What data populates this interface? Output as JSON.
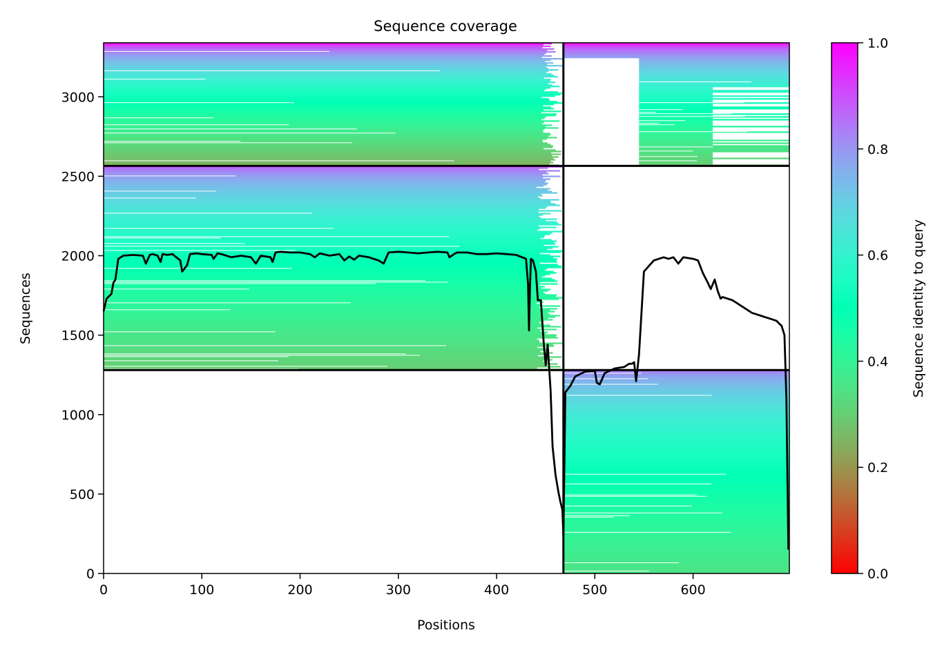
{
  "chart_data": {
    "type": "heatmap",
    "title": "Sequence coverage",
    "xlabel": "Positions",
    "ylabel": "Sequences",
    "xlim": [
      0,
      698
    ],
    "ylim": [
      0,
      3340
    ],
    "xticks": [
      0,
      100,
      200,
      300,
      400,
      500,
      600
    ],
    "yticks": [
      0,
      500,
      1000,
      1500,
      2000,
      2500,
      3000
    ],
    "colorbar": {
      "label": "Sequence identity to query",
      "colormap": "rainbow_r",
      "range": [
        0.0,
        1.0
      ],
      "ticks": [
        "0.0",
        "0.2",
        "0.4",
        "0.6",
        "0.8",
        "1.0"
      ]
    },
    "boundaries": {
      "x_split": 468,
      "y_splits": [
        1280,
        2565
      ]
    },
    "blocks": [
      {
        "x": [
          0,
          468
        ],
        "y": [
          2565,
          3340
        ],
        "identity_top": 1.0,
        "identity_bottom": 0.25,
        "ragged_end_x": 445
      },
      {
        "x": [
          468,
          698
        ],
        "y": [
          2565,
          3340
        ],
        "identity_top": 1.0,
        "identity_bottom": 0.3,
        "gap_x": [
          468,
          545
        ],
        "gap_y_below": 3250,
        "ragged_region_x": [
          620,
          698
        ]
      },
      {
        "x": [
          0,
          468
        ],
        "y": [
          1280,
          2565
        ],
        "identity_top": 0.9,
        "identity_bottom": 0.3,
        "ragged_end_x": 440
      },
      {
        "x": [
          468,
          698
        ],
        "y": [
          0,
          1280
        ],
        "identity_top": 0.85,
        "identity_bottom": 0.35
      }
    ],
    "series": [
      {
        "type": "line",
        "color": "#000000",
        "x": [
          0,
          3,
          8,
          10,
          12,
          15,
          20,
          30,
          40,
          43,
          47,
          50,
          55,
          58,
          60,
          65,
          70,
          78,
          80,
          85,
          88,
          95,
          100,
          110,
          112,
          116,
          120,
          130,
          140,
          150,
          155,
          160,
          170,
          172,
          175,
          180,
          190,
          200,
          210,
          215,
          220,
          230,
          240,
          245,
          250,
          255,
          260,
          270,
          280,
          285,
          290,
          300,
          310,
          320,
          330,
          340,
          350,
          352,
          358,
          360,
          370,
          380,
          390,
          400,
          410,
          420,
          430,
          432,
          433,
          434,
          435,
          437,
          440,
          442,
          445,
          448,
          450,
          452,
          455,
          457,
          460,
          463,
          465,
          467,
          468,
          470,
          475,
          480,
          490,
          500,
          502,
          505,
          510,
          520,
          530,
          535,
          538,
          540,
          542,
          545,
          550,
          560,
          570,
          575,
          580,
          585,
          590,
          600,
          605,
          610,
          615,
          618,
          620,
          622,
          625,
          628,
          630,
          640,
          650,
          660,
          665,
          670,
          675,
          680,
          685,
          688,
          690,
          693,
          695,
          697
        ],
        "y": [
          1650,
          1730,
          1760,
          1830,
          1850,
          1980,
          2000,
          2005,
          2000,
          1950,
          2005,
          2010,
          2000,
          1960,
          2010,
          2005,
          2010,
          1970,
          1900,
          1940,
          2010,
          2015,
          2010,
          2005,
          1980,
          2015,
          2010,
          1990,
          2000,
          1990,
          1950,
          2000,
          1990,
          1960,
          2020,
          2025,
          2020,
          2020,
          2010,
          1990,
          2015,
          2000,
          2010,
          1970,
          1995,
          1975,
          2000,
          1990,
          1970,
          1950,
          2020,
          2025,
          2020,
          2015,
          2020,
          2025,
          2020,
          1990,
          2015,
          2020,
          2020,
          2010,
          2010,
          2015,
          2010,
          2005,
          1980,
          1820,
          1530,
          1800,
          1980,
          1970,
          1900,
          1720,
          1720,
          1450,
          1310,
          1440,
          1150,
          800,
          620,
          510,
          450,
          400,
          230,
          1140,
          1180,
          1240,
          1270,
          1275,
          1200,
          1190,
          1260,
          1290,
          1300,
          1320,
          1320,
          1330,
          1210,
          1380,
          1900,
          1970,
          1990,
          1980,
          1990,
          1950,
          1990,
          1980,
          1970,
          1890,
          1830,
          1790,
          1820,
          1850,
          1780,
          1730,
          1740,
          1720,
          1680,
          1640,
          1630,
          1620,
          1610,
          1600,
          1590,
          1570,
          1560,
          1500,
          1100,
          150
        ]
      }
    ]
  }
}
